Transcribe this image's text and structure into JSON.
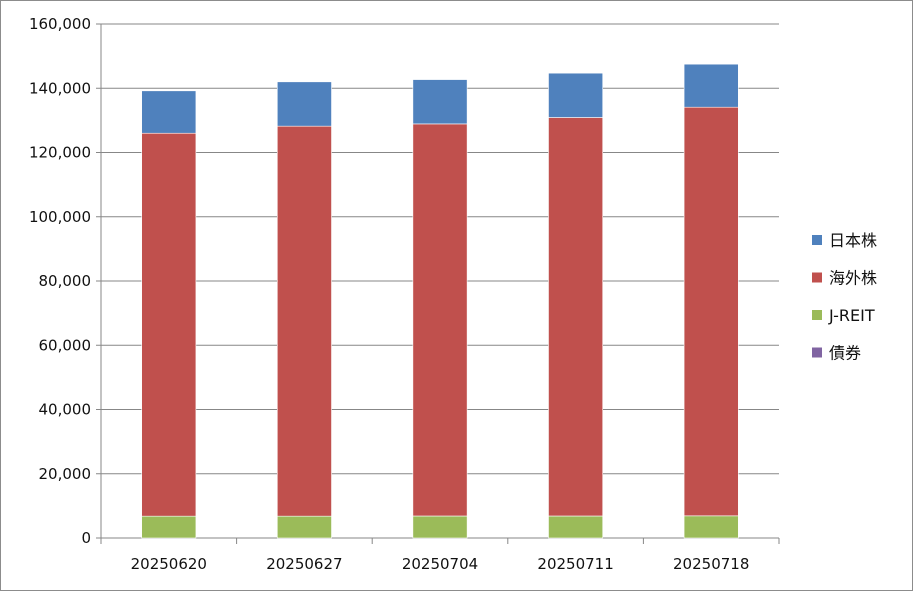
{
  "chart_data": {
    "type": "bar",
    "stacked": true,
    "categories": [
      "20250620",
      "20250627",
      "20250704",
      "20250711",
      "20250718"
    ],
    "series": [
      {
        "name": "債券",
        "color": "#8064A2",
        "values": [
          0,
          0,
          0,
          0,
          0
        ]
      },
      {
        "name": "J-REIT",
        "color": "#9BBB59",
        "values": [
          6800,
          6800,
          6850,
          6850,
          6900
        ]
      },
      {
        "name": "海外株",
        "color": "#C0504D",
        "values": [
          119200,
          121400,
          122050,
          124050,
          127200
        ]
      },
      {
        "name": "日本株",
        "color": "#4F81BD",
        "values": [
          13200,
          13800,
          13800,
          13800,
          13400
        ]
      }
    ],
    "legend_order": [
      "日本株",
      "海外株",
      "J-REIT",
      "債券"
    ],
    "ylim": [
      0,
      160000
    ],
    "yticks": [
      0,
      20000,
      40000,
      60000,
      80000,
      100000,
      120000,
      140000,
      160000
    ],
    "ytick_labels": [
      "0",
      "20,000",
      "40,000",
      "60,000",
      "80,000",
      "100,000",
      "120,000",
      "140,000",
      "160,000"
    ],
    "grid": true,
    "legend_position": "right",
    "title": "",
    "xlabel": "",
    "ylabel": ""
  }
}
